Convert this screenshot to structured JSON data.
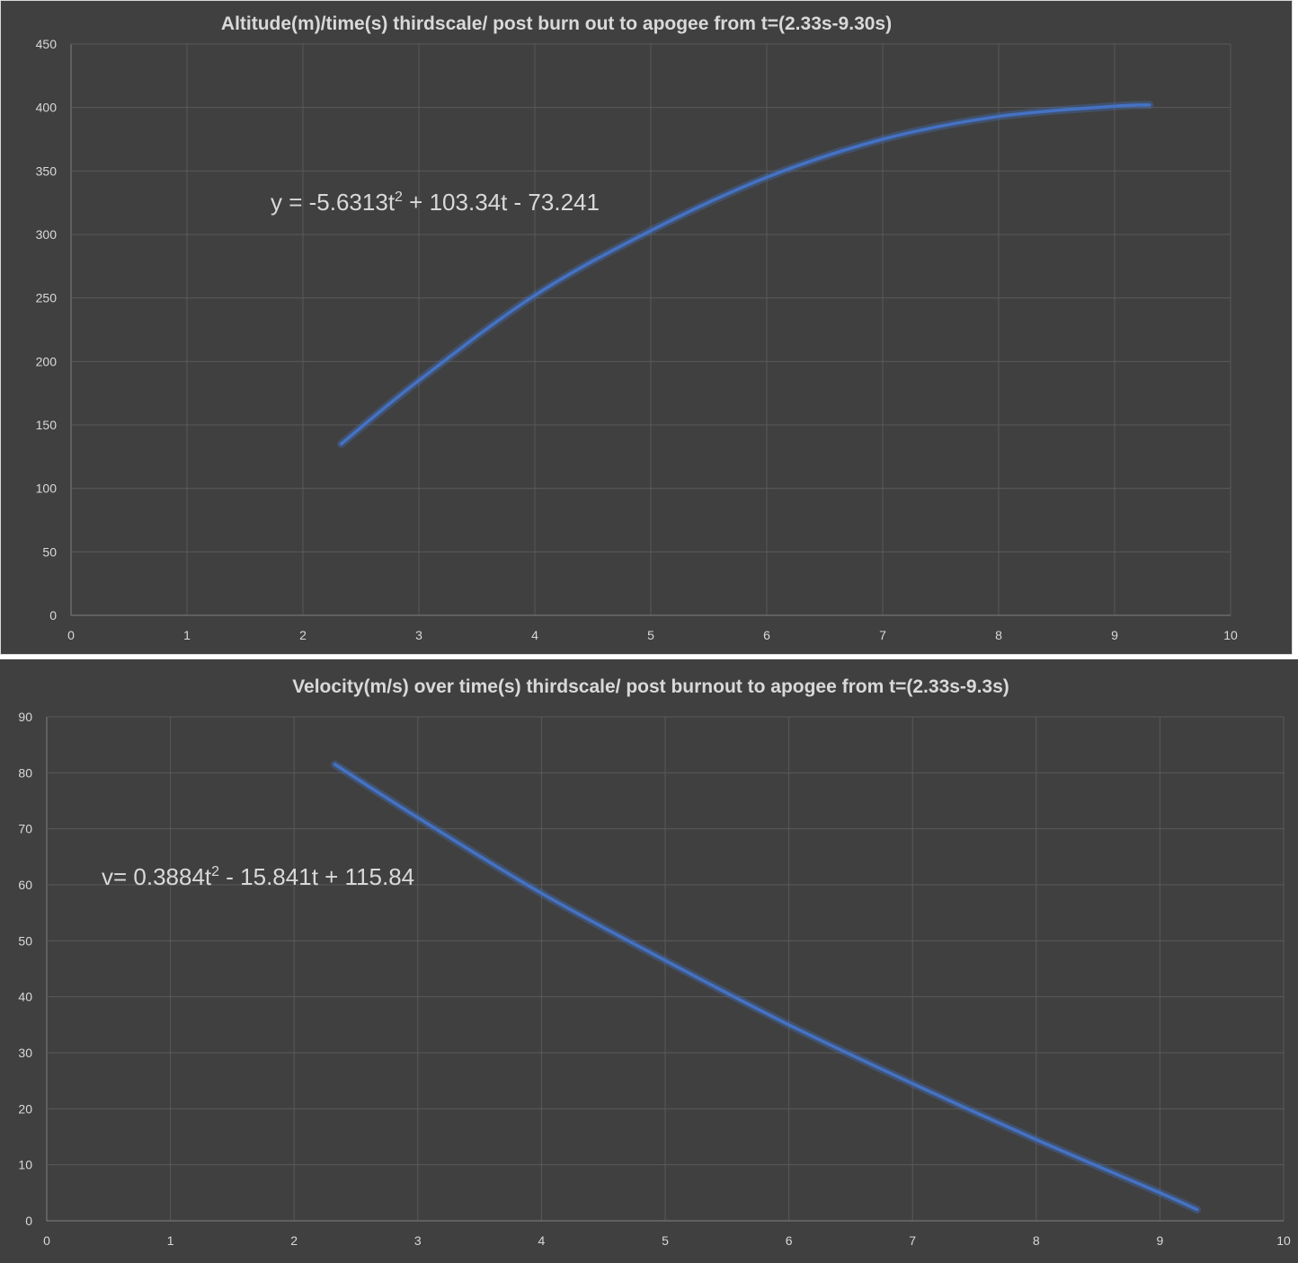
{
  "chart_data": [
    {
      "type": "line",
      "title": "Altitude(m)/time(s) thirdscale/ post burn out to apogee from t=(2.33s-9.30s)",
      "equation": {
        "lead": "y = -5.6313t",
        "exp": "2",
        "rest": " + 103.34t - 73.241"
      },
      "xlabel": "",
      "ylabel": "",
      "xlim": [
        0,
        10
      ],
      "ylim": [
        0,
        450
      ],
      "x_ticks": [
        "0",
        "1",
        "2",
        "3",
        "4",
        "5",
        "6",
        "7",
        "8",
        "9",
        "10"
      ],
      "y_ticks": [
        "0",
        "50",
        "100",
        "150",
        "200",
        "250",
        "300",
        "350",
        "400",
        "450"
      ],
      "grid": true,
      "line_color": "#4472c4",
      "series": [
        {
          "x": [
            2.33,
            3,
            4,
            5,
            6,
            7,
            8,
            9,
            9.3
          ],
          "y": [
            135,
            185,
            252,
            303,
            345,
            375,
            393,
            401,
            402
          ]
        }
      ]
    },
    {
      "type": "line",
      "title": "Velocity(m/s) over time(s) thirdscale/ post burnout to apogee from t=(2.33s-9.3s)",
      "equation": {
        "lead": "v= 0.3884t",
        "exp": "2",
        "rest": " - 15.841t + 115.84"
      },
      "xlabel": "",
      "ylabel": "",
      "xlim": [
        0,
        10
      ],
      "ylim": [
        0,
        90
      ],
      "x_ticks": [
        "0",
        "1",
        "2",
        "3",
        "4",
        "5",
        "6",
        "7",
        "8",
        "9",
        "10"
      ],
      "y_ticks": [
        "0",
        "10",
        "20",
        "30",
        "40",
        "50",
        "60",
        "70",
        "80",
        "90"
      ],
      "grid": true,
      "line_color": "#4472c4",
      "series": [
        {
          "x": [
            2.33,
            3,
            4,
            5,
            6,
            7,
            8,
            9,
            9.3
          ],
          "y": [
            81.5,
            72,
            58.5,
            46.5,
            35,
            24.5,
            14.5,
            5,
            2
          ]
        }
      ]
    }
  ]
}
